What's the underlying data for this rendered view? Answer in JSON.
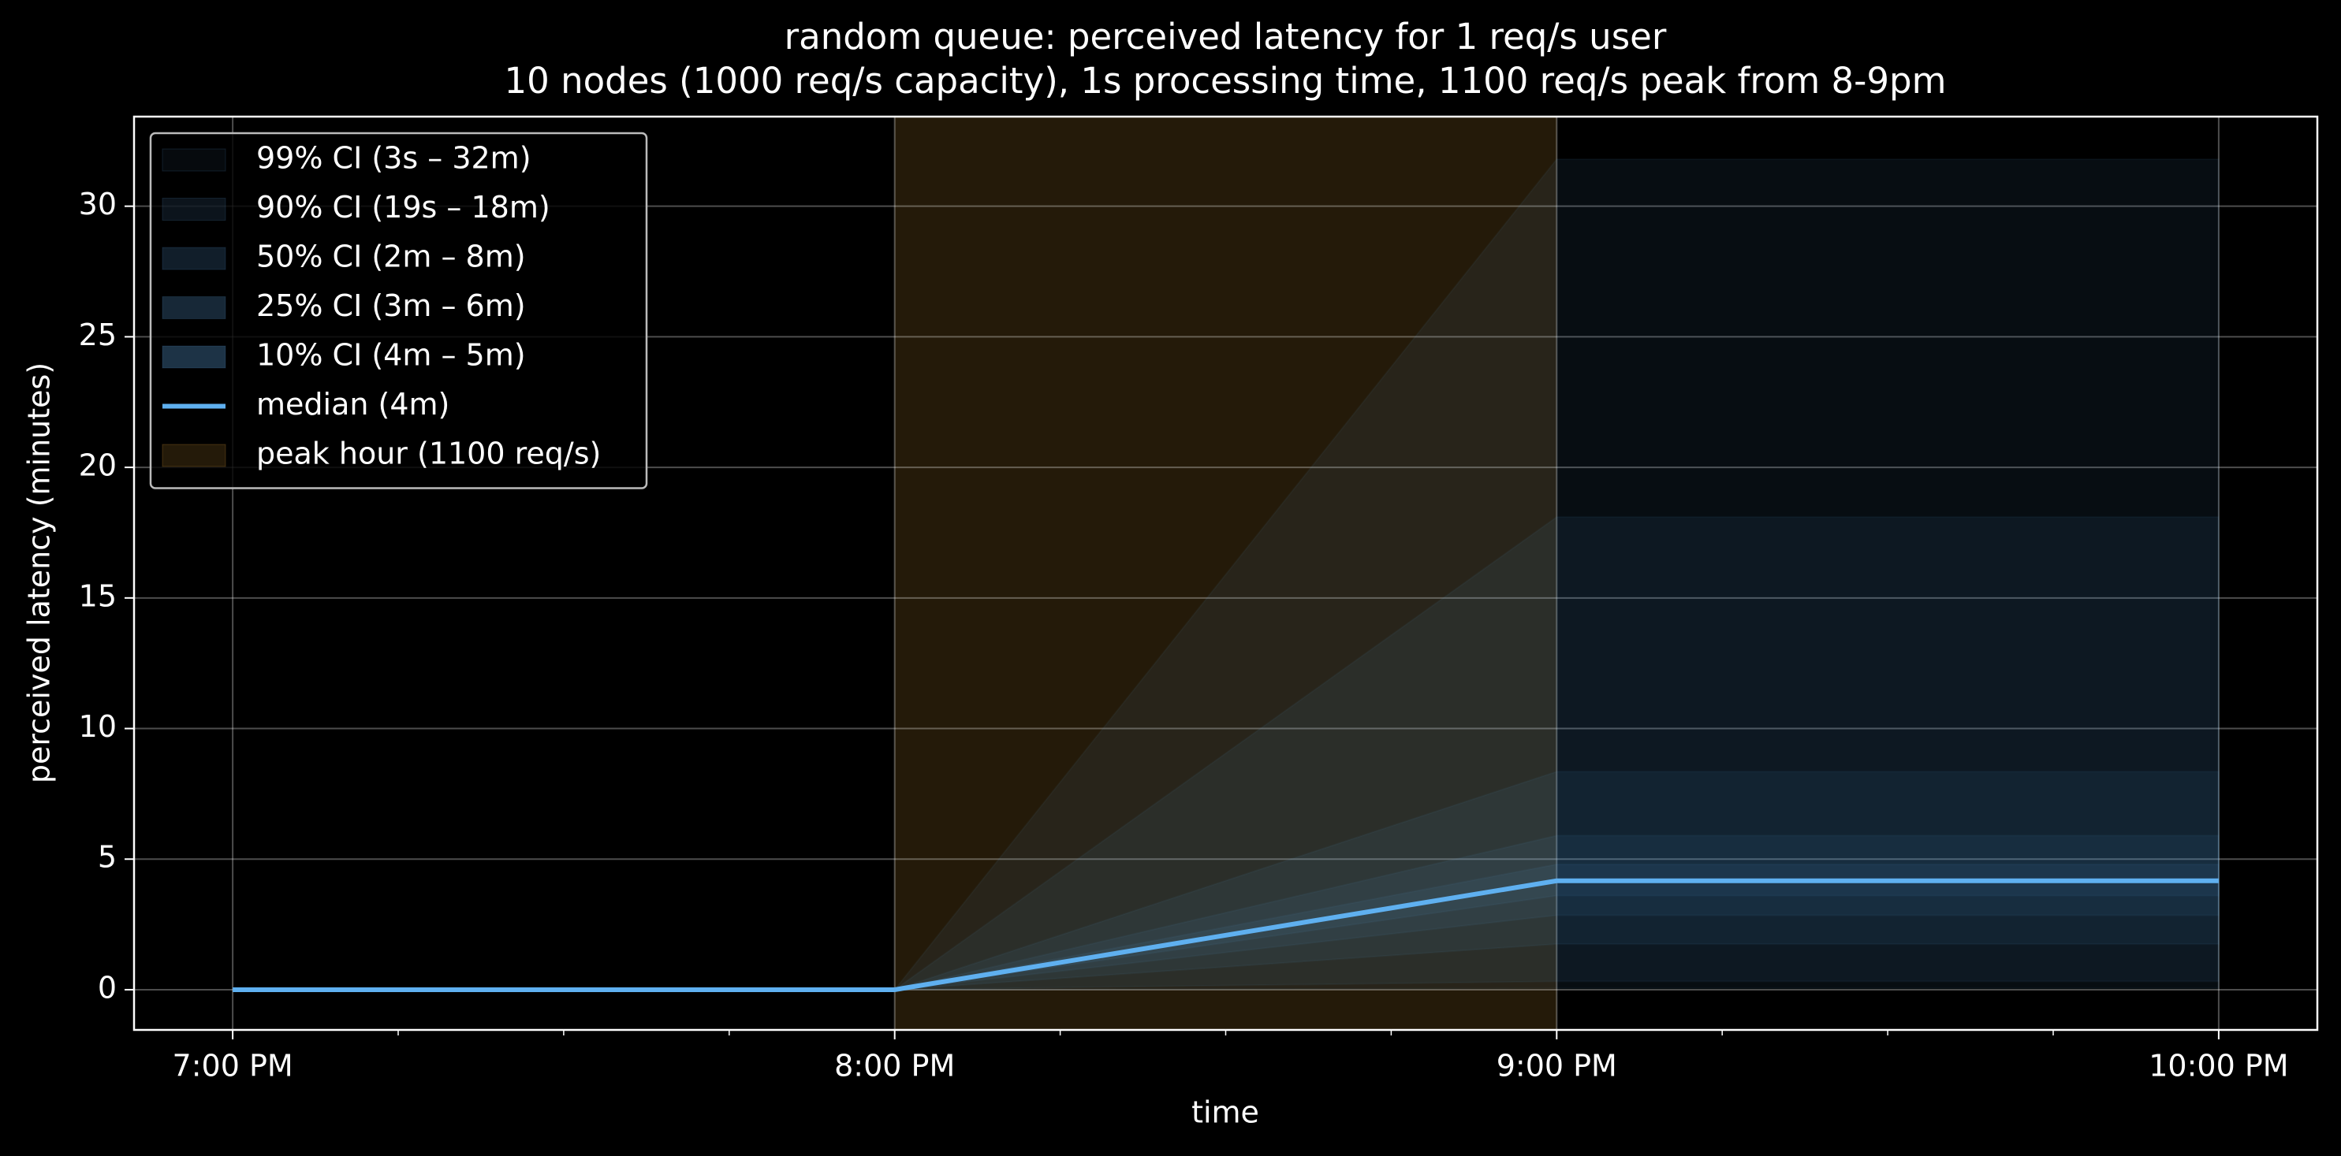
{
  "chart_data": {
    "type": "area_line",
    "title": "random queue: perceived latency for 1 req/s user",
    "subtitle": "10 nodes (1000 req/s capacity), 1s processing time, 1100 req/s peak from 8-9pm",
    "xlabel": "time",
    "ylabel": "perceived latency (minutes)",
    "x": [
      19,
      20,
      21,
      22
    ],
    "xlim": [
      18.851,
      22.149
    ],
    "xticks": [
      {
        "value": 19,
        "label": "7:00 PM"
      },
      {
        "value": 20,
        "label": "8:00 PM"
      },
      {
        "value": 21,
        "label": "9:00 PM"
      },
      {
        "value": 22,
        "label": "10:00 PM"
      }
    ],
    "xminorticks": [
      19.25,
      19.5,
      19.75,
      20.25,
      20.5,
      20.75,
      21.25,
      21.5,
      21.75
    ],
    "ylim": [
      -1.54,
      33.43
    ],
    "yticks": [
      0,
      5,
      10,
      15,
      20,
      25,
      30
    ],
    "grid": true,
    "legend": "upper left",
    "bands": [
      {
        "name": "99% CI (3s – 32m)",
        "color": "#5fa8e8",
        "lower": [
          0,
          0,
          0.05,
          0.05
        ],
        "upper": [
          0,
          0,
          31.8,
          31.8
        ]
      },
      {
        "name": "90% CI (19s – 18m)",
        "color": "#5fa8e8",
        "lower": [
          0,
          0,
          0.32,
          0.32
        ],
        "upper": [
          0,
          0,
          18.1,
          18.1
        ]
      },
      {
        "name": "50% CI (2m – 8m)",
        "color": "#5fa8e8",
        "lower": [
          0,
          0,
          1.75,
          1.75
        ],
        "upper": [
          0,
          0,
          8.35,
          8.35
        ]
      },
      {
        "name": "25% CI (3m – 6m)",
        "color": "#5fa8e8",
        "lower": [
          0,
          0,
          2.85,
          2.85
        ],
        "upper": [
          0,
          0,
          5.9,
          5.9
        ]
      },
      {
        "name": "10% CI (4m – 5m)",
        "color": "#5fa8e8",
        "lower": [
          0,
          0,
          3.6,
          3.6
        ],
        "upper": [
          0,
          0,
          4.8,
          4.8
        ]
      }
    ],
    "series": [
      {
        "name": "median (4m)",
        "color": "#5fb0f0",
        "values": [
          0,
          0,
          4.17,
          4.17
        ]
      }
    ],
    "peak": {
      "name": "peak hour (1100 req/s)",
      "color": "#ffb640",
      "start": 20,
      "end": 21
    }
  }
}
